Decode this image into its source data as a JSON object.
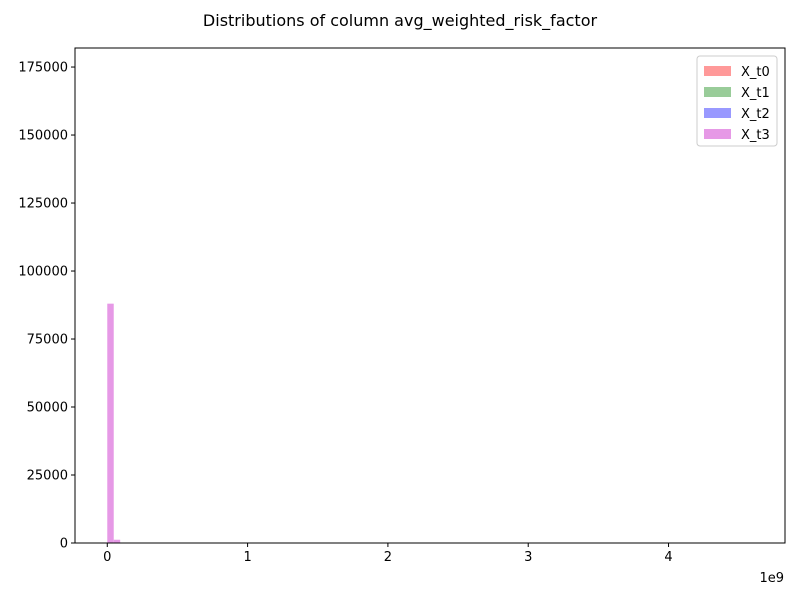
{
  "chart_data": {
    "type": "histogram",
    "title": "Distributions of column avg_weighted_risk_factor",
    "xlabel": "",
    "ylabel": "",
    "x_offset_label": "1e9",
    "x_scale": 1000000000,
    "xlim": [
      -0.23,
      4.83
    ],
    "ylim": [
      0,
      182000
    ],
    "x_ticks": [
      0,
      1,
      2,
      3,
      4
    ],
    "y_ticks": [
      0,
      25000,
      50000,
      75000,
      100000,
      125000,
      150000,
      175000
    ],
    "x_tick_labels": [
      "0",
      "1",
      "2",
      "3",
      "4"
    ],
    "y_tick_labels": [
      "0",
      "25000",
      "50000",
      "75000",
      "100000",
      "125000",
      "150000",
      "175000"
    ],
    "grid": false,
    "legend_position": "top-right",
    "bin_width": 0.046,
    "series": [
      {
        "name": "X_t0",
        "color": "#ff9999",
        "bins": []
      },
      {
        "name": "X_t1",
        "color": "#99cc99",
        "bins": []
      },
      {
        "name": "X_t2",
        "color": "#9999ff",
        "bins": []
      },
      {
        "name": "X_t3",
        "color": "#e699e6",
        "bins": [
          {
            "x": 0.0,
            "count": 88000
          },
          {
            "x": 0.046,
            "count": 1200
          }
        ]
      }
    ]
  }
}
